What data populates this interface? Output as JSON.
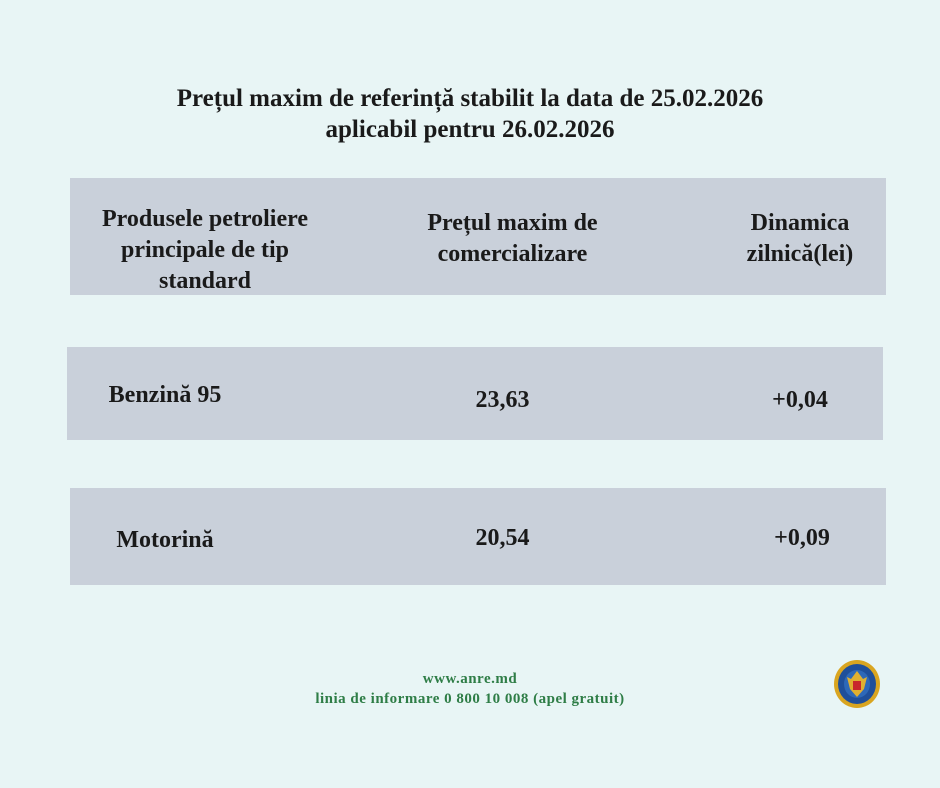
{
  "title": {
    "line1": "Prețul maxim de referință stabilit la data de 25.02.2026",
    "line2": "aplicabil pentru 26.02.2026"
  },
  "table": {
    "headers": [
      "Produsele petroliere principale de tip standard",
      "Prețul maxim de comercializare",
      "Dinamica zilnică(lei)"
    ],
    "rows": [
      {
        "product": "Benzină 95",
        "price": "23,63",
        "change": "+0,04"
      },
      {
        "product": "Motorină",
        "price": "20,54",
        "change": "+0,09"
      }
    ]
  },
  "footer": {
    "website": "www.anre.md",
    "hotline": "linia de informare 0 800 10 008 (apel gratuit)"
  },
  "logo": {
    "icon": "anre-coat-of-arms-seal"
  },
  "colors": {
    "background": "#e8f5f5",
    "box": "#c9d0da",
    "footer_text": "#2e7d46"
  }
}
